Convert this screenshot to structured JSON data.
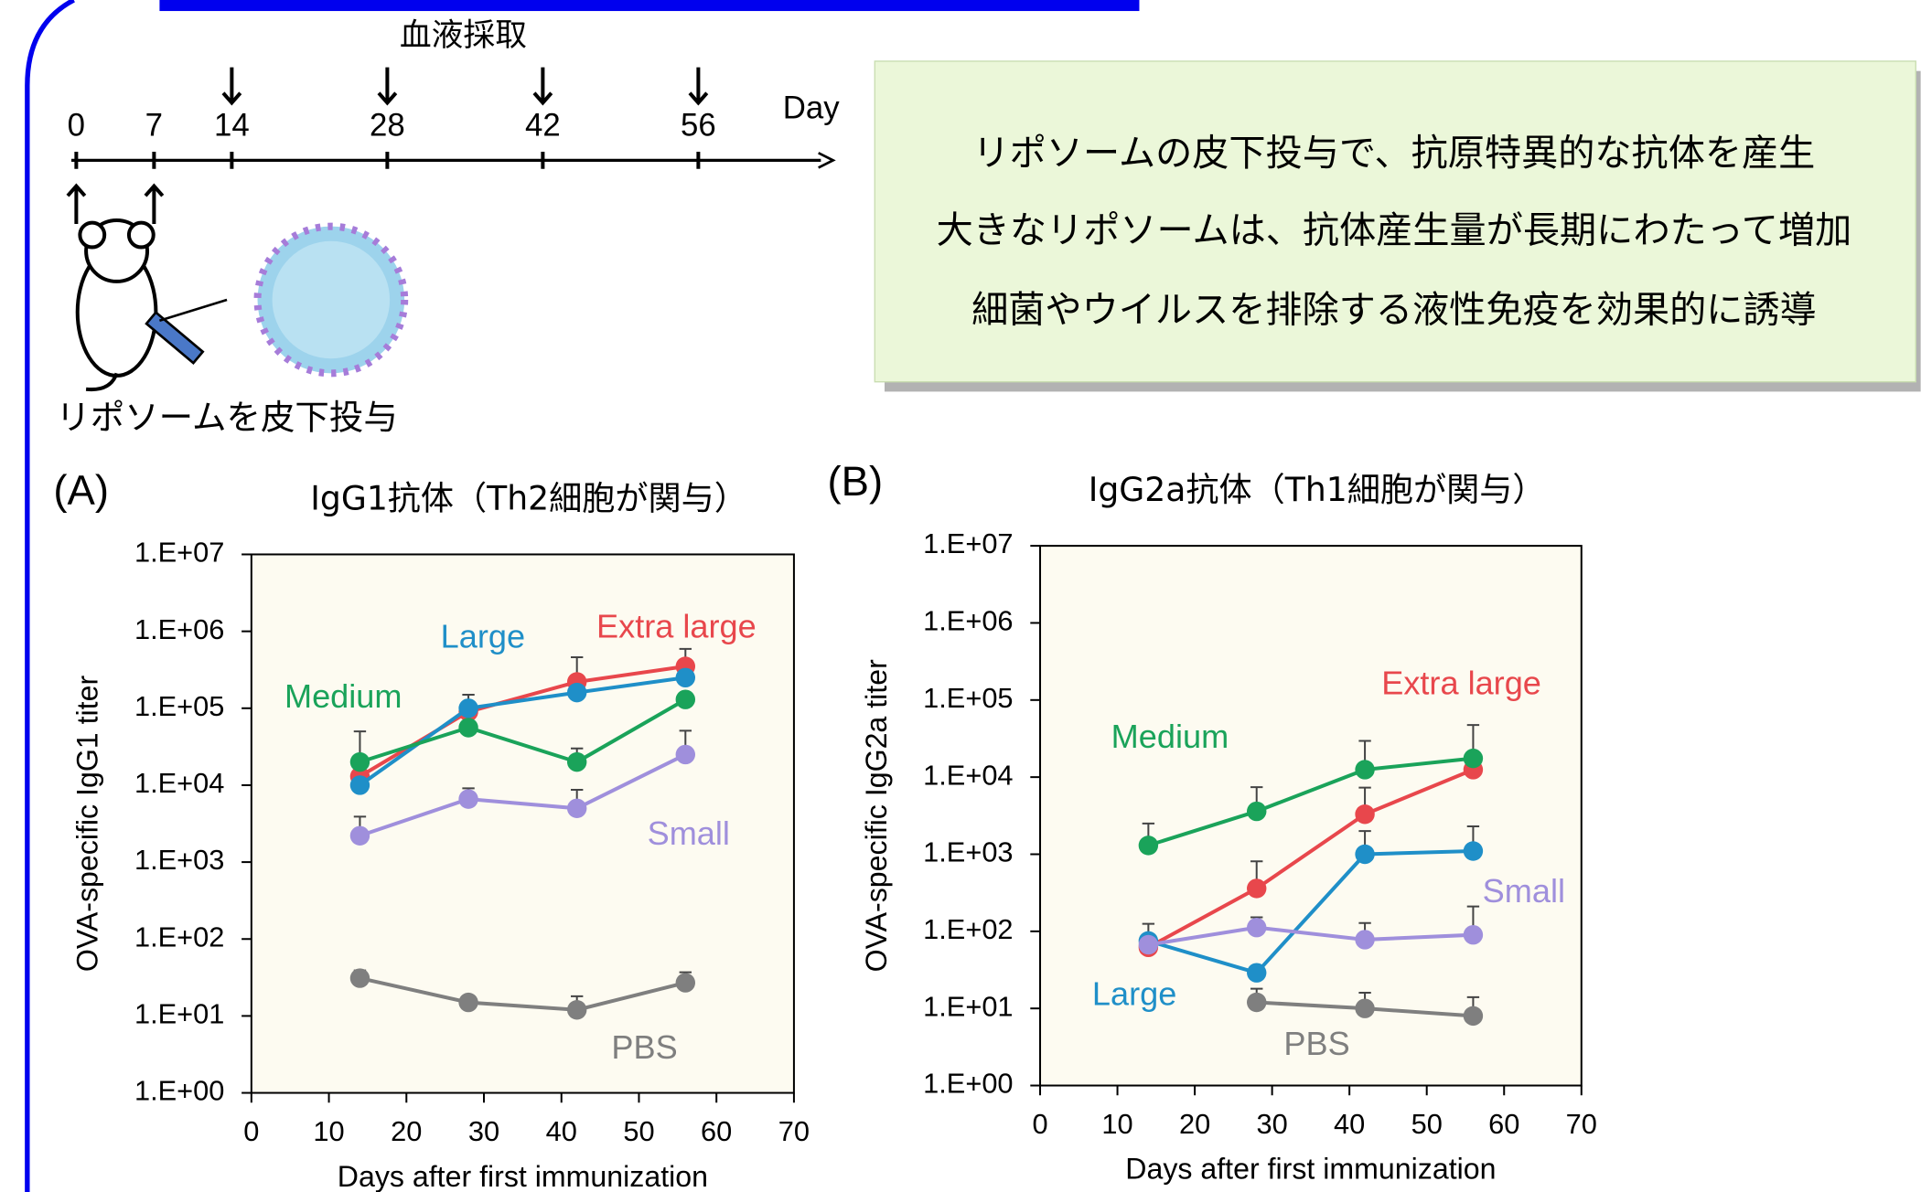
{
  "timeline": {
    "header": "血液採取",
    "unit": "Day",
    "days": [
      0,
      7,
      14,
      28,
      42,
      56
    ],
    "sampling_days": [
      14,
      28,
      42,
      56
    ],
    "dosing_days": [
      0,
      7
    ],
    "caption": "リポソームを皮下投与"
  },
  "summary": [
    "リポソームの皮下投与で、抗原特異的な抗体を産生",
    "大きなリポソームは、抗体産生量が長期にわたって増加",
    "細菌やウイルスを排除する液性免疫を効果的に誘導"
  ],
  "chart_data": [
    {
      "type": "line",
      "panel": "(A)",
      "title": "IgG1抗体（Th2細胞が関与）",
      "x_label": "Days after first immunization",
      "y_label": "OVA-specific IgG1 titer",
      "log_y": true,
      "x": [
        14,
        28,
        42,
        56
      ],
      "xlim": [
        0,
        70
      ],
      "xticks": [
        0,
        10,
        20,
        30,
        40,
        50,
        60,
        70
      ],
      "ylim": [
        1,
        10000000
      ],
      "yticks": [
        {
          "value": 1,
          "label": "1.E+00"
        },
        {
          "value": 10,
          "label": "1.E+01"
        },
        {
          "value": 100,
          "label": "1.E+02"
        },
        {
          "value": 1000,
          "label": "1.E+03"
        },
        {
          "value": 10000,
          "label": "1.E+04"
        },
        {
          "value": 100000,
          "label": "1.E+05"
        },
        {
          "value": 1000000,
          "label": "1.E+06"
        },
        {
          "value": 10000000,
          "label": "1.E+07"
        }
      ],
      "series": [
        {
          "name": "Extra large",
          "color": "#e8474c",
          "values": [
            13000,
            90000,
            220000,
            350000
          ],
          "errors": [
            null,
            null,
            240000,
            240000
          ]
        },
        {
          "name": "Large",
          "color": "#1f8fc8",
          "values": [
            10000,
            100000,
            160000,
            250000
          ],
          "errors": [
            null,
            50000,
            null,
            null
          ]
        },
        {
          "name": "Medium",
          "color": "#1aa35a",
          "values": [
            20000,
            56000,
            20000,
            130000
          ],
          "errors": [
            30000,
            null,
            10000,
            null
          ]
        },
        {
          "name": "Small",
          "color": "#9f8fdc",
          "values": [
            2200,
            6600,
            5000,
            25000
          ],
          "errors": [
            1700,
            2500,
            3700,
            26000
          ]
        },
        {
          "name": "PBS",
          "color": "#7f7f7f",
          "values": [
            31,
            15,
            12,
            27
          ],
          "errors": [
            8,
            null,
            6,
            10
          ]
        }
      ]
    },
    {
      "type": "line",
      "panel": "(B)",
      "title": "IgG2a抗体（Th1細胞が関与）",
      "x_label": "Days after first immunization",
      "y_label": "OVA-specific IgG2a titer",
      "log_y": true,
      "x": [
        14,
        28,
        42,
        56
      ],
      "xlim": [
        0,
        70
      ],
      "xticks": [
        0,
        10,
        20,
        30,
        40,
        50,
        60,
        70
      ],
      "ylim": [
        1,
        10000000
      ],
      "yticks": [
        {
          "value": 1,
          "label": "1.E+00"
        },
        {
          "value": 10,
          "label": "1.E+01"
        },
        {
          "value": 100,
          "label": "1.E+02"
        },
        {
          "value": 1000,
          "label": "1.E+03"
        },
        {
          "value": 10000,
          "label": "1.E+04"
        },
        {
          "value": 100000,
          "label": "1.E+05"
        },
        {
          "value": 1000000,
          "label": "1.E+06"
        },
        {
          "value": 10000000,
          "label": "1.E+07"
        }
      ],
      "series": [
        {
          "name": "Extra large",
          "color": "#e8474c",
          "values": [
            62,
            360,
            3300,
            12500
          ],
          "errors": [
            null,
            450,
            4000,
            null
          ]
        },
        {
          "name": "Large",
          "color": "#1f8fc8",
          "values": [
            75,
            29,
            1000,
            1100
          ],
          "errors": [
            50,
            null,
            1000,
            1200
          ]
        },
        {
          "name": "Medium",
          "color": "#1aa35a",
          "values": [
            1300,
            3600,
            12500,
            17500
          ],
          "errors": [
            1200,
            3800,
            17000,
            30000
          ]
        },
        {
          "name": "Small",
          "color": "#9f8fdc",
          "values": [
            67,
            112,
            78,
            90
          ],
          "errors": [
            null,
            40,
            50,
            120
          ]
        },
        {
          "name": "PBS",
          "color": "#7f7f7f",
          "values": [
            null,
            12,
            10,
            8
          ],
          "errors": [
            null,
            6,
            6,
            6
          ]
        }
      ]
    }
  ]
}
